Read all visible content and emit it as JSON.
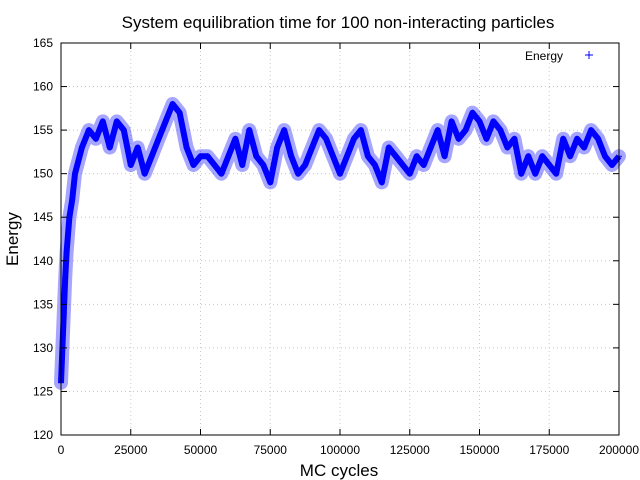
{
  "chart_data": {
    "type": "scatter",
    "title": "System equilibration time for 100 non-interacting particles",
    "xlabel": "MC cycles",
    "ylabel": "Energy",
    "xlim": [
      0,
      200000
    ],
    "ylim": [
      120,
      165
    ],
    "xticks": [
      0,
      25000,
      50000,
      75000,
      100000,
      125000,
      150000,
      175000,
      200000
    ],
    "yticks": [
      120,
      125,
      130,
      135,
      140,
      145,
      150,
      155,
      160,
      165
    ],
    "grid": true,
    "legend_position": "top-right",
    "marker": "+",
    "color": "#0000ff",
    "series": [
      {
        "name": "Energy",
        "x": [
          0,
          500,
          1000,
          1500,
          2000,
          2500,
          3000,
          4000,
          5000,
          7500,
          10000,
          12500,
          15000,
          17500,
          20000,
          22500,
          25000,
          27500,
          30000,
          32500,
          35000,
          37500,
          40000,
          42500,
          45000,
          47500,
          50000,
          52500,
          55000,
          57500,
          60000,
          62500,
          65000,
          67500,
          70000,
          72500,
          75000,
          77500,
          80000,
          82500,
          85000,
          87500,
          90000,
          92500,
          95000,
          97500,
          100000,
          102500,
          105000,
          107500,
          110000,
          112500,
          115000,
          117500,
          120000,
          122500,
          125000,
          127500,
          130000,
          132500,
          135000,
          137500,
          140000,
          142500,
          145000,
          147500,
          150000,
          152500,
          155000,
          157500,
          160000,
          162500,
          165000,
          167500,
          170000,
          172500,
          175000,
          177500,
          180000,
          182500,
          185000,
          187500,
          190000,
          192500,
          195000,
          197500,
          200000
        ],
        "y": [
          126,
          130,
          134,
          138,
          141,
          143,
          145,
          147,
          150,
          153,
          155,
          154,
          156,
          153,
          156,
          155,
          151,
          153,
          150,
          152,
          154,
          156,
          158,
          157,
          153,
          151,
          152,
          152,
          151,
          150,
          152,
          154,
          151,
          155,
          152,
          151,
          149,
          153,
          155,
          152,
          150,
          151,
          153,
          155,
          154,
          152,
          150,
          152,
          154,
          155,
          152,
          151,
          149,
          153,
          152,
          151,
          150,
          152,
          151,
          153,
          155,
          152,
          156,
          154,
          155,
          157,
          156,
          154,
          156,
          155,
          153,
          154,
          150,
          152,
          150,
          152,
          151,
          150,
          154,
          152,
          154,
          153,
          155,
          154,
          152,
          151,
          152
        ]
      }
    ]
  }
}
